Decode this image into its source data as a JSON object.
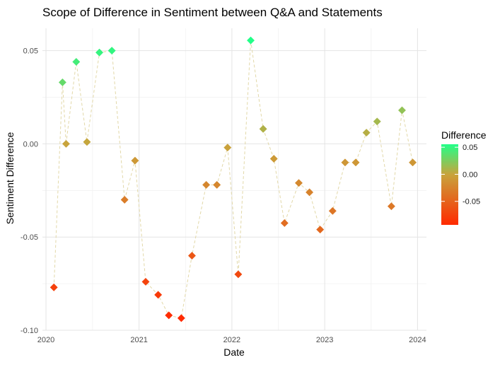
{
  "chart_data": {
    "type": "scatter",
    "title": "Scope of Difference in Sentiment between Q&A and Statements",
    "xlabel": "Date",
    "ylabel": "Sentiment Difference",
    "xlim": [
      "2019-12-18",
      "2024-02-05"
    ],
    "ylim": [
      -0.1,
      0.062
    ],
    "x_ticks": [
      "2020-01-01",
      "2021-01-01",
      "2022-01-01",
      "2023-01-01",
      "2024-01-01"
    ],
    "x_tick_labels": [
      "2020",
      "2021",
      "2022",
      "2023",
      "2024"
    ],
    "y_ticks": [
      0.05,
      0.0,
      -0.05,
      -0.1
    ],
    "y_tick_labels": [
      "0.05",
      "0.00",
      "-0.05",
      "-0.10"
    ],
    "grid": true,
    "connecting_line": {
      "style": "dashed",
      "color": "#e2d8a8"
    },
    "legend": {
      "title": "Difference",
      "placement": "right",
      "type": "colorbar",
      "ticks": [
        0.05,
        0.0,
        -0.05
      ],
      "tick_labels": [
        "0.05",
        "0.00",
        "-0.05"
      ],
      "range": [
        -0.0935,
        0.0555
      ]
    },
    "color_scale": {
      "low": "#ff2a00",
      "mid": "#c8a43c",
      "high": "#22ff88"
    },
    "x": [
      "2020-02-01",
      "2020-03-06",
      "2020-03-20",
      "2020-04-29",
      "2020-06-10",
      "2020-07-29",
      "2020-09-16",
      "2020-11-05",
      "2020-12-16",
      "2021-01-27",
      "2021-03-17",
      "2021-04-28",
      "2021-06-16",
      "2021-07-28",
      "2021-09-22",
      "2021-11-03",
      "2021-12-15",
      "2022-01-26",
      "2022-03-16",
      "2022-05-04",
      "2022-06-15",
      "2022-07-27",
      "2022-09-21",
      "2022-11-02",
      "2022-12-14",
      "2023-02-01",
      "2023-03-22",
      "2023-05-03",
      "2023-06-14",
      "2023-07-26",
      "2023-09-20",
      "2023-11-01",
      "2023-12-13"
    ],
    "y": [
      -0.077,
      0.033,
      0.0,
      0.044,
      0.001,
      0.049,
      0.05,
      -0.03,
      -0.009,
      -0.074,
      -0.081,
      -0.092,
      -0.0935,
      -0.06,
      -0.022,
      -0.022,
      -0.002,
      -0.07,
      0.0555,
      0.008,
      -0.008,
      -0.0425,
      -0.021,
      -0.026,
      -0.046,
      -0.036,
      -0.01,
      -0.01,
      0.006,
      0.012,
      -0.0335,
      0.018,
      -0.01
    ]
  }
}
